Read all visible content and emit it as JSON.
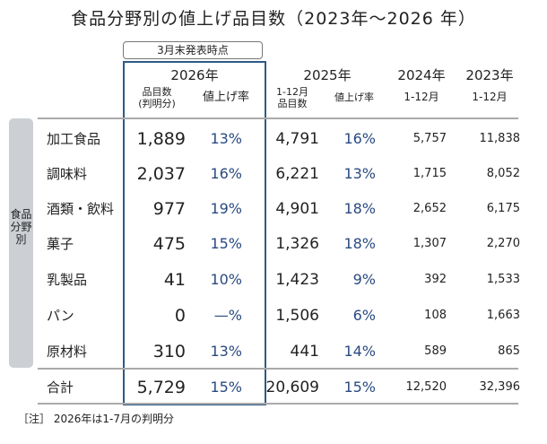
{
  "title": "食品分野別の値上げ品目数（2023年～2026 年）",
  "badge": "3月末発表時点",
  "side_label": "食品分野別",
  "headers": {
    "y2026": "2026年",
    "y2025": "2025年",
    "y2024": "2024年",
    "y2023": "2023年",
    "s2026a": "品目数\n(判明分)",
    "s2026b": "値上げ率",
    "s2025a": "1-12月\n品目数",
    "s2025b": "値上げ率",
    "s2024": "1-12月",
    "s2023": "1-12月"
  },
  "rows": [
    {
      "category": "加工食品",
      "n2026": "1,889",
      "p2026": "13%",
      "n2025": "4,791",
      "p2025": "16%",
      "n2024": "5,757",
      "n2023": "11,838"
    },
    {
      "category": "調味料",
      "n2026": "2,037",
      "p2026": "16%",
      "n2025": "6,221",
      "p2025": "13%",
      "n2024": "1,715",
      "n2023": "8,052"
    },
    {
      "category": "酒類・飲料",
      "n2026": "977",
      "p2026": "19%",
      "n2025": "4,901",
      "p2025": "18%",
      "n2024": "2,652",
      "n2023": "6,175"
    },
    {
      "category": "菓子",
      "n2026": "475",
      "p2026": "15%",
      "n2025": "1,326",
      "p2025": "18%",
      "n2024": "1,307",
      "n2023": "2,270"
    },
    {
      "category": "乳製品",
      "n2026": "41",
      "p2026": "10%",
      "n2025": "1,423",
      "p2025": "9%",
      "n2024": "392",
      "n2023": "1,533"
    },
    {
      "category": "パン",
      "n2026": "0",
      "p2026": "—%",
      "n2025": "1,506",
      "p2025": "6%",
      "n2024": "108",
      "n2023": "1,663"
    },
    {
      "category": "原材料",
      "n2026": "310",
      "p2026": "13%",
      "n2025": "441",
      "p2025": "14%",
      "n2024": "589",
      "n2023": "865"
    }
  ],
  "total": {
    "category": "合計",
    "n2026": "5,729",
    "p2026": "15%",
    "n2025": "20,609",
    "p2025": "15%",
    "n2024": "12,520",
    "n2023": "32,396"
  },
  "note": "［注］ 2026年は1-7月の判明分"
}
